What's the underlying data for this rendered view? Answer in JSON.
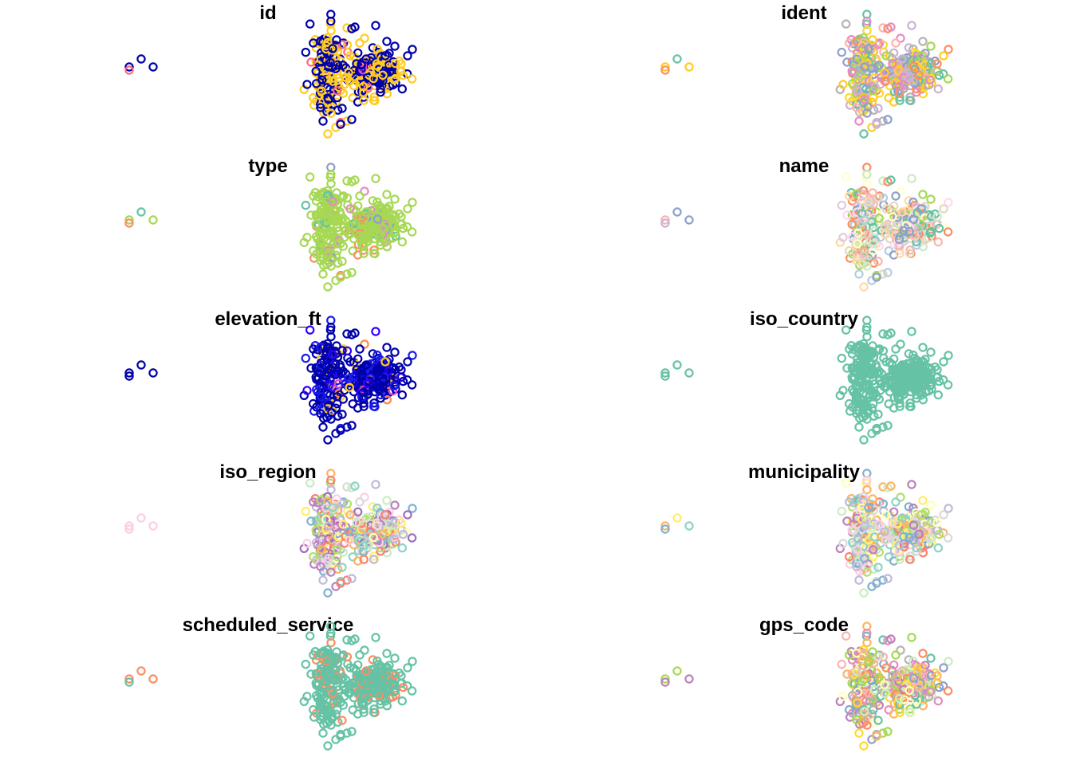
{
  "chart_data": {
    "type": "scatter",
    "layout": "small-multiples",
    "nrow": 5,
    "ncol": 2,
    "marker": "open-circle",
    "panels": [
      {
        "title": "id",
        "palette": [
          "#0000aa",
          "#ffcc22",
          "#ff6688",
          "#dd44cc"
        ],
        "weights": [
          0.46,
          0.5,
          0.02,
          0.02
        ],
        "inset": [
          "#0000aa",
          "#0000aa",
          "#ff6688",
          "#0000aa"
        ]
      },
      {
        "title": "ident",
        "palette": [
          "#ffcc22",
          "#66c2a5",
          "#fc8d62",
          "#a6d854",
          "#e78ac3",
          "#8da0cb",
          "#ffd92f",
          "#b3b3b3",
          "#fbb4ae",
          "#cab2d6"
        ],
        "weights": [
          1,
          1,
          1,
          1,
          1,
          1,
          1,
          1,
          1,
          1
        ],
        "inset": [
          "#ffcc22",
          "#66c2a5",
          "#fc8d62",
          "#ffcc22"
        ]
      },
      {
        "title": "type",
        "palette": [
          "#a6d854",
          "#fc8d62",
          "#66c2a5",
          "#e78ac3",
          "#8da0cb"
        ],
        "weights": [
          0.86,
          0.04,
          0.04,
          0.04,
          0.02
        ],
        "inset": [
          "#a6d854",
          "#66c2a5",
          "#fc8d62",
          "#a6d854"
        ]
      },
      {
        "title": "name",
        "palette": [
          "#fbb4ae",
          "#b3cde3",
          "#ccebc5",
          "#decbe4",
          "#fed9a6",
          "#ffffcc",
          "#e5d8bd",
          "#fddaec",
          "#8da0cb",
          "#fc8d62",
          "#a6d854",
          "#66c2a5"
        ],
        "weights": [
          1,
          1,
          1,
          1,
          1,
          1,
          1,
          1,
          1,
          1,
          1,
          1
        ],
        "inset": [
          "#fbb4ae",
          "#8da0cb",
          "#cab2d6",
          "#8da0cb"
        ]
      },
      {
        "title": "elevation_ft",
        "palette": [
          "#0000aa",
          "#1a1aee",
          "#3300ff",
          "#ffcc22",
          "#dd44cc",
          "#ff8844"
        ],
        "weights": [
          0.66,
          0.16,
          0.08,
          0.06,
          0.02,
          0.02
        ],
        "inset": [
          "#0000aa",
          "#0000aa",
          "#0000aa",
          "#0000aa"
        ]
      },
      {
        "title": "iso_country",
        "palette": [
          "#66c2a5"
        ],
        "weights": [
          1
        ],
        "inset": [
          "#66c2a5",
          "#66c2a5",
          "#66c2a5",
          "#66c2a5"
        ]
      },
      {
        "title": "iso_region",
        "palette": [
          "#fccde5",
          "#bebada",
          "#80b1d3",
          "#fb8072",
          "#fdb462",
          "#b3de69",
          "#ffed6f",
          "#ccebc5",
          "#bc80bd",
          "#8dd3c7",
          "#ffffb3",
          "#d9d9d9",
          "#a06cc0"
        ],
        "weights": [
          1.4,
          1,
          1.2,
          0.8,
          1,
          1,
          1,
          1,
          1.4,
          1,
          1,
          0.6,
          1.2
        ],
        "inset": [
          "#fccde5",
          "#fccde5",
          "#fccde5",
          "#fccde5"
        ]
      },
      {
        "title": "municipality",
        "palette": [
          "#fdb462",
          "#ffed6f",
          "#80b1d3",
          "#8dd3c7",
          "#fb8072",
          "#bebada",
          "#b3de69",
          "#fccde5",
          "#d9d9d9",
          "#bc80bd",
          "#ccebc5",
          "#ffffb3"
        ],
        "weights": [
          1,
          1,
          1,
          1,
          1,
          1,
          1,
          1,
          1,
          1,
          1,
          1
        ],
        "inset": [
          "#fdb462",
          "#ffed6f",
          "#80b1d3",
          "#8dd3c7"
        ]
      },
      {
        "title": "scheduled_service",
        "palette": [
          "#66c2a5",
          "#fc8d62"
        ],
        "weights": [
          0.88,
          0.12
        ],
        "inset": [
          "#fc8d62",
          "#fc8d62",
          "#66c2a5",
          "#fc8d62"
        ]
      },
      {
        "title": "gps_code",
        "palette": [
          "#a6d854",
          "#ffd92f",
          "#fc8d62",
          "#8da0cb",
          "#e78ac3",
          "#66c2a5",
          "#bc80bd",
          "#b3b3b3",
          "#fbb4ae",
          "#ccebc5",
          "#fdb462",
          "#ffffb3"
        ],
        "weights": [
          1,
          1,
          1,
          1,
          1,
          1,
          1,
          1,
          1,
          1,
          1,
          1
        ],
        "inset": [
          "#a6d854",
          "#a6d854",
          "#bc80bd",
          "#bc80bd"
        ]
      }
    ]
  }
}
